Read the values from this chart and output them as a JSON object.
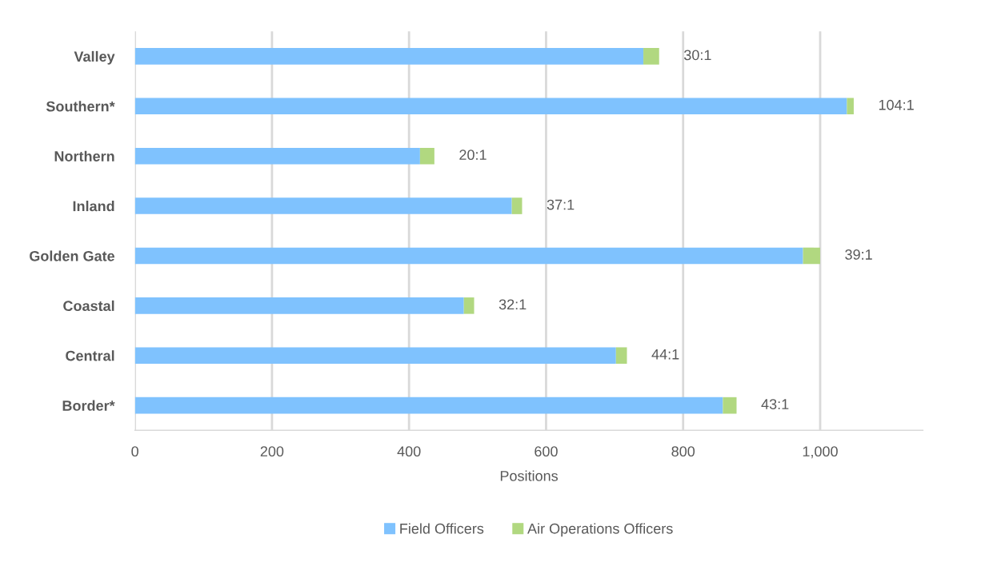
{
  "chart_data": {
    "type": "bar",
    "orientation": "horizontal",
    "stacked": true,
    "categories": [
      "Valley",
      "Southern*",
      "Northern",
      "Inland",
      "Golden Gate",
      "Coastal",
      "Central",
      "Border*"
    ],
    "series": [
      {
        "name": "Field Officers",
        "color": "#7fc2fe",
        "values": [
          742,
          1039,
          416,
          550,
          975,
          480,
          702,
          858
        ]
      },
      {
        "name": "Air Operations Officers",
        "color": "#b1d880",
        "values": [
          23,
          10,
          21,
          15,
          25,
          15,
          16,
          20
        ],
        "value_labels": [
          "30:1",
          "104:1",
          "20:1",
          "37:1",
          "39:1",
          "32:1",
          "44:1",
          "43:1"
        ]
      }
    ],
    "xlabel": "Positions",
    "xlim": [
      0,
      1150
    ],
    "xticks": [
      0,
      200,
      400,
      600,
      800,
      {
        "value": 1000,
        "label": "1,000"
      }
    ],
    "grid": "x",
    "legend": "bottom"
  }
}
